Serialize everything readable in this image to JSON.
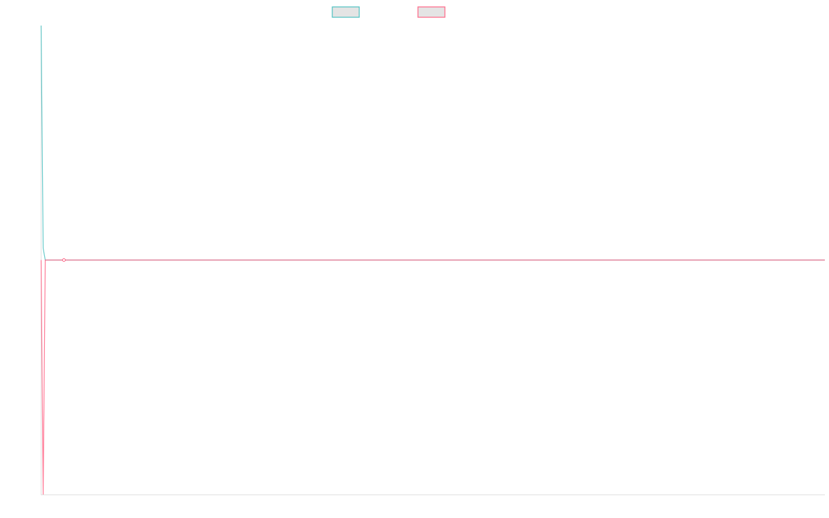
{
  "chart_data": {
    "type": "line",
    "title": "",
    "xlabel": "",
    "ylabel": "",
    "x": [
      0,
      1,
      2,
      11,
      378
    ],
    "series": [
      {
        "name": "",
        "color": "#4bc0c0",
        "values": [
          1,
          0.05,
          0,
          0,
          0
        ]
      },
      {
        "name": "",
        "color": "#ff6384",
        "values": [
          0,
          -1,
          0,
          0,
          0
        ]
      }
    ],
    "xlim": [
      0,
      378
    ],
    "ylim": [
      -1,
      1
    ],
    "grid": false,
    "legend": "top-center",
    "highlighted_point": {
      "x": 11,
      "y": 0
    },
    "axis_color": "#e0e0e0",
    "legend_box_fill": "#e4e4e4"
  }
}
